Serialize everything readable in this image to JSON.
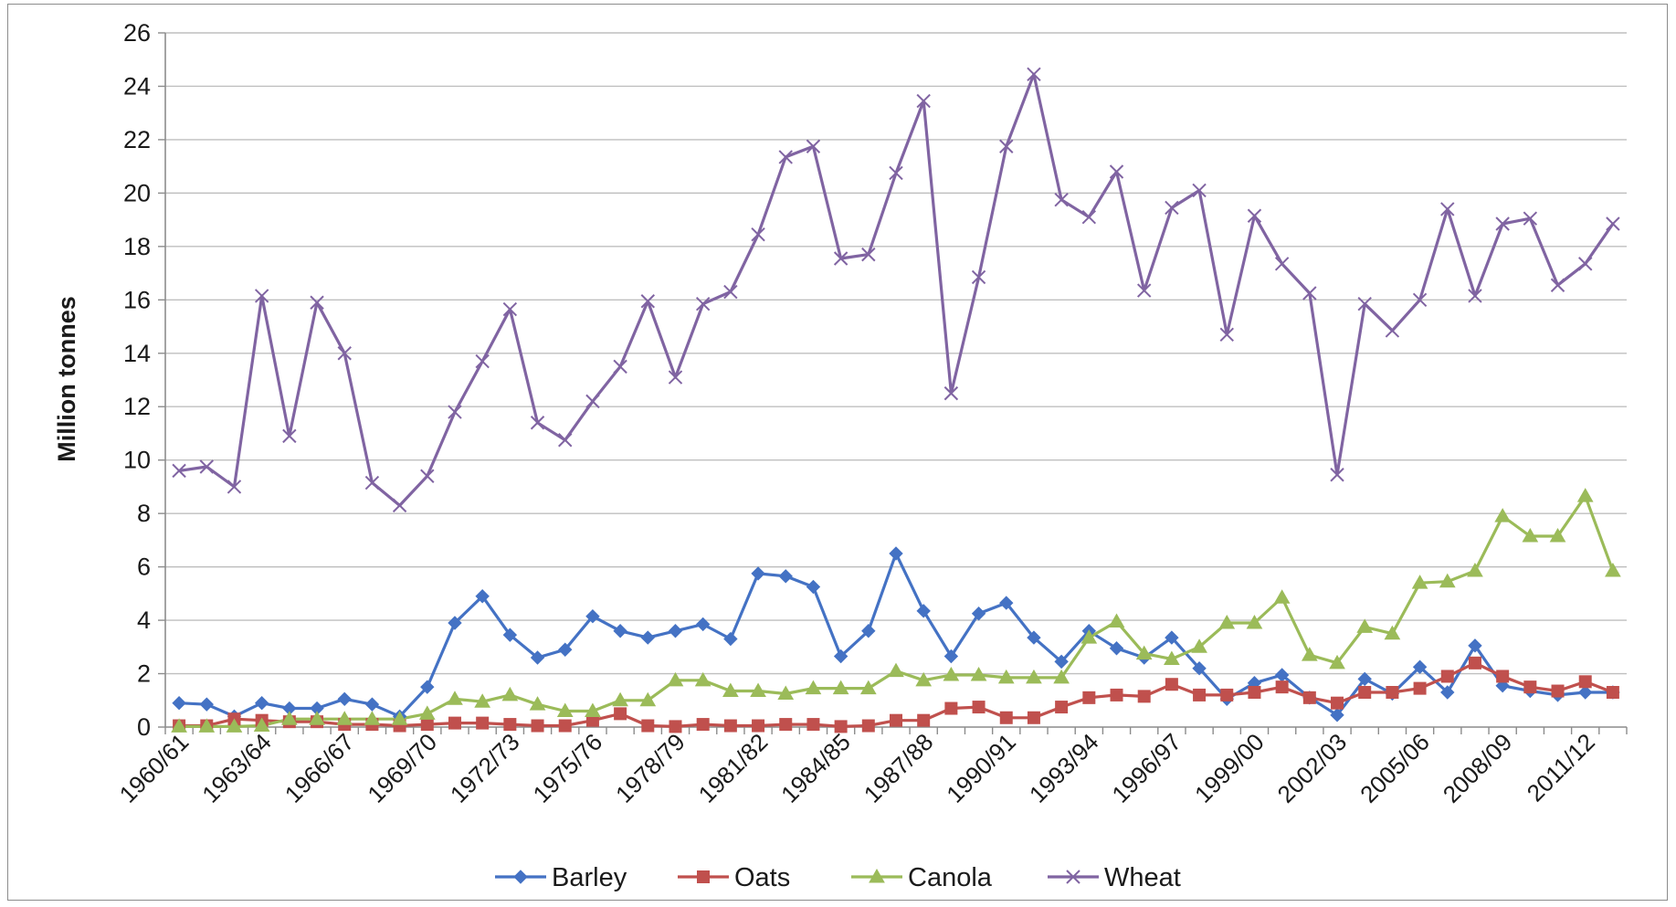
{
  "chart_data": {
    "type": "line",
    "title": "",
    "xlabel": "",
    "ylabel": "Million tonnes",
    "ylim": [
      0,
      26
    ],
    "ytick_step": 2,
    "grid": "horizontal",
    "legend_position": "bottom",
    "x": [
      "1960/61",
      "1961/62",
      "1962/63",
      "1963/64",
      "1964/65",
      "1965/66",
      "1966/67",
      "1967/68",
      "1968/69",
      "1969/70",
      "1970/71",
      "1971/72",
      "1972/73",
      "1973/74",
      "1974/75",
      "1975/76",
      "1976/77",
      "1977/78",
      "1978/79",
      "1979/80",
      "1980/81",
      "1981/82",
      "1982/83",
      "1983/84",
      "1984/85",
      "1985/86",
      "1986/87",
      "1987/88",
      "1988/89",
      "1989/90",
      "1990/91",
      "1991/92",
      "1992/93",
      "1993/94",
      "1994/95",
      "1995/96",
      "1996/97",
      "1997/98",
      "1998/99",
      "1999/00",
      "2000/01",
      "2001/02",
      "2002/03",
      "2003/04",
      "2004/05",
      "2005/06",
      "2006/07",
      "2007/08",
      "2008/09",
      "2009/10",
      "2010/11",
      "2011/12",
      "2012/13"
    ],
    "x_tick_labels": [
      "1960/61",
      "1963/64",
      "1966/67",
      "1969/70",
      "1972/73",
      "1975/76",
      "1978/79",
      "1981/82",
      "1984/85",
      "1987/88",
      "1990/91",
      "1993/94",
      "1996/97",
      "1999/00",
      "2002/03",
      "2005/06",
      "2008/09",
      "2011/12"
    ],
    "series": [
      {
        "name": "Barley",
        "color": "#4472c4",
        "marker": "diamond",
        "values": [
          0.9,
          0.85,
          0.4,
          0.9,
          0.7,
          0.7,
          1.05,
          0.85,
          0.4,
          1.5,
          3.9,
          4.9,
          3.45,
          2.6,
          2.9,
          4.15,
          3.6,
          3.35,
          3.6,
          3.85,
          3.3,
          5.75,
          5.65,
          5.25,
          2.65,
          3.6,
          6.5,
          4.35,
          2.65,
          4.25,
          4.65,
          3.35,
          2.45,
          3.6,
          2.95,
          2.6,
          3.35,
          2.2,
          1.05,
          1.65,
          1.95,
          1.1,
          0.45,
          1.8,
          1.25,
          2.25,
          1.3,
          3.05,
          1.55,
          1.35,
          1.2,
          1.3,
          1.3
        ]
      },
      {
        "name": "Oats",
        "color": "#c0504d",
        "marker": "square",
        "values": [
          0.05,
          0.05,
          0.3,
          0.25,
          0.2,
          0.2,
          0.1,
          0.1,
          0.05,
          0.1,
          0.15,
          0.15,
          0.1,
          0.05,
          0.05,
          0.25,
          0.5,
          0.05,
          0.02,
          0.1,
          0.05,
          0.05,
          0.1,
          0.1,
          0.02,
          0.05,
          0.25,
          0.25,
          0.7,
          0.75,
          0.35,
          0.35,
          0.75,
          1.1,
          1.2,
          1.15,
          1.6,
          1.2,
          1.2,
          1.3,
          1.5,
          1.1,
          0.9,
          1.3,
          1.3,
          1.45,
          1.9,
          2.4,
          1.9,
          1.5,
          1.35,
          1.7,
          1.3
        ]
      },
      {
        "name": "Canola",
        "color": "#9bbb59",
        "marker": "triangle",
        "values": [
          0.02,
          0.02,
          0.02,
          0.05,
          0.3,
          0.3,
          0.3,
          0.3,
          0.3,
          0.5,
          1.05,
          0.95,
          1.2,
          0.85,
          0.6,
          0.6,
          1.0,
          1.0,
          1.75,
          1.75,
          1.35,
          1.35,
          1.25,
          1.45,
          1.45,
          1.45,
          2.1,
          1.75,
          1.95,
          1.95,
          1.85,
          1.85,
          1.85,
          3.35,
          3.95,
          2.75,
          2.55,
          3.0,
          3.9,
          3.9,
          4.85,
          2.7,
          2.4,
          3.75,
          3.5,
          5.4,
          5.45,
          5.85,
          7.9,
          7.15,
          7.15,
          8.65,
          5.85
        ]
      },
      {
        "name": "Wheat",
        "color": "#8064a2",
        "marker": "x",
        "values": [
          9.6,
          9.75,
          9.0,
          16.15,
          10.9,
          15.9,
          14.0,
          9.15,
          8.3,
          9.4,
          11.8,
          13.7,
          15.65,
          11.4,
          10.75,
          12.2,
          13.5,
          15.95,
          13.1,
          15.85,
          16.3,
          18.45,
          21.35,
          21.75,
          17.55,
          17.7,
          20.75,
          23.45,
          12.5,
          16.85,
          21.75,
          24.45,
          19.75,
          19.1,
          20.8,
          16.35,
          19.45,
          20.1,
          14.7,
          19.15,
          17.35,
          16.25,
          9.45,
          15.85,
          14.85,
          16.0,
          19.4,
          16.15,
          18.85,
          19.05,
          16.55,
          17.35,
          18.85
        ]
      }
    ]
  }
}
